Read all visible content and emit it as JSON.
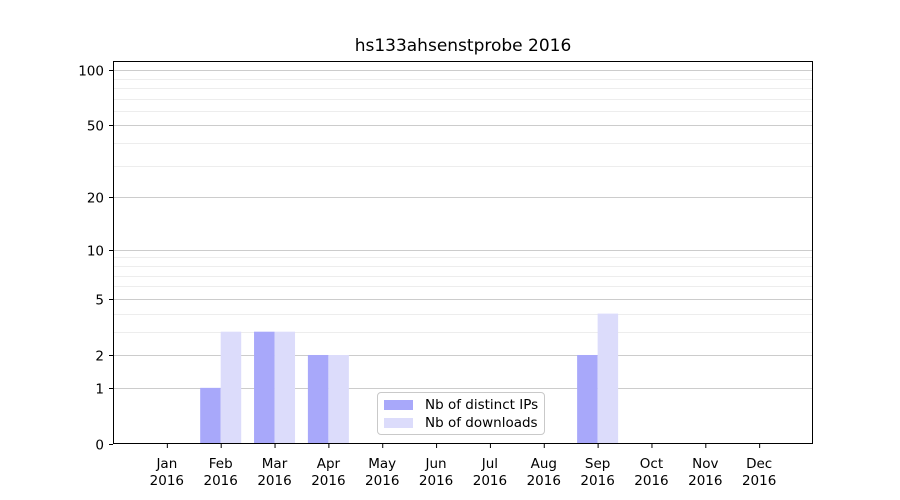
{
  "figure": {
    "background": "#ffffff"
  },
  "chart_data": {
    "type": "bar",
    "title": "hs133ahsenstprobe 2016",
    "categories": [
      "Jan",
      "Feb",
      "Mar",
      "Apr",
      "May",
      "Jun",
      "Jul",
      "Aug",
      "Sep",
      "Oct",
      "Nov",
      "Dec"
    ],
    "x_tick_second_line": "2016",
    "series": [
      {
        "name": "Nb of distinct IPs",
        "color": "#a8a8fa",
        "values": [
          0,
          1,
          3,
          2,
          0,
          0,
          0,
          0,
          2,
          0,
          0,
          0
        ]
      },
      {
        "name": "Nb of downloads",
        "color": "#dcdcfb",
        "values": [
          0,
          3,
          3,
          2,
          0,
          0,
          0,
          0,
          4,
          0,
          0,
          0
        ]
      }
    ],
    "xlabel": "",
    "ylabel": "",
    "yscale": "log1p",
    "ylim": [
      0,
      112
    ],
    "y_major_ticks": [
      0,
      1,
      2,
      5,
      10,
      20,
      50,
      100
    ],
    "y_tick_labels": [
      "0",
      "1",
      "2",
      "5",
      "10",
      "20",
      "50",
      "100"
    ],
    "y_minor_gridlines": [
      3,
      4,
      6,
      7,
      8,
      9,
      30,
      40,
      60,
      70,
      80,
      90
    ],
    "grid": "horizontal major and minor, grid off vertically",
    "legend": {
      "location": "lower center inside plot",
      "entries": [
        "Nb of distinct IPs",
        "Nb of downloads"
      ]
    },
    "colors": {
      "major_grid": "#cccccc",
      "minor_grid": "#ededed",
      "spine": "#000000",
      "tick_text": "#000000",
      "legend_border": "#c9c9c9",
      "background": "#ffffff"
    }
  }
}
